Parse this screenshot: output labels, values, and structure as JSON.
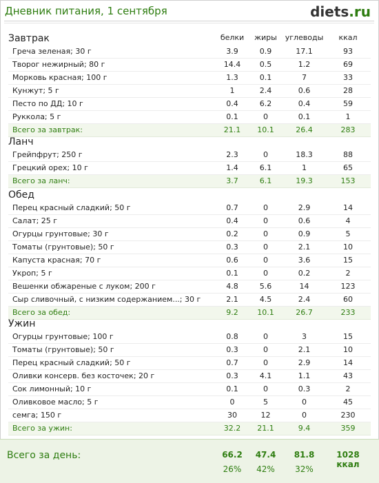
{
  "header": {
    "title": "Дневник питания, 1 сентября",
    "logo_main": "diets",
    "logo_tld": ".ru"
  },
  "columns": [
    "белки",
    "жиры",
    "углеводы",
    "ккал"
  ],
  "meals": [
    {
      "name": "Завтрак",
      "items": [
        {
          "name": "Греча зеленая; 30 г",
          "protein": "3.9",
          "fat": "0.9",
          "carbs": "17.1",
          "kcal": "93"
        },
        {
          "name": "Творог нежирный; 80 г",
          "protein": "14.4",
          "fat": "0.5",
          "carbs": "1.2",
          "kcal": "69"
        },
        {
          "name": "Морковь красная; 100 г",
          "protein": "1.3",
          "fat": "0.1",
          "carbs": "7",
          "kcal": "33"
        },
        {
          "name": "Кунжут; 5 г",
          "protein": "1",
          "fat": "2.4",
          "carbs": "0.6",
          "kcal": "28"
        },
        {
          "name": "Песто по ДД; 10 г",
          "protein": "0.4",
          "fat": "6.2",
          "carbs": "0.4",
          "kcal": "59"
        },
        {
          "name": "Руккола; 5 г",
          "protein": "0.1",
          "fat": "0",
          "carbs": "0.1",
          "kcal": "1"
        }
      ],
      "total": {
        "label": "Всего за завтрак:",
        "protein": "21.1",
        "fat": "10.1",
        "carbs": "26.4",
        "kcal": "283"
      }
    },
    {
      "name": "Ланч",
      "items": [
        {
          "name": "Грейпфрут; 250 г",
          "protein": "2.3",
          "fat": "0",
          "carbs": "18.3",
          "kcal": "88"
        },
        {
          "name": "Грецкий орех; 10 г",
          "protein": "1.4",
          "fat": "6.1",
          "carbs": "1",
          "kcal": "65"
        }
      ],
      "total": {
        "label": "Всего за ланч:",
        "protein": "3.7",
        "fat": "6.1",
        "carbs": "19.3",
        "kcal": "153"
      }
    },
    {
      "name": "Обед",
      "items": [
        {
          "name": "Перец красный сладкий; 50 г",
          "protein": "0.7",
          "fat": "0",
          "carbs": "2.9",
          "kcal": "14"
        },
        {
          "name": "Салат; 25 г",
          "protein": "0.4",
          "fat": "0",
          "carbs": "0.6",
          "kcal": "4"
        },
        {
          "name": "Огурцы грунтовые; 30 г",
          "protein": "0.2",
          "fat": "0",
          "carbs": "0.9",
          "kcal": "5"
        },
        {
          "name": "Томаты (грунтовые); 50 г",
          "protein": "0.3",
          "fat": "0",
          "carbs": "2.1",
          "kcal": "10"
        },
        {
          "name": "Капуста красная; 70 г",
          "protein": "0.6",
          "fat": "0",
          "carbs": "3.6",
          "kcal": "15"
        },
        {
          "name": "Укроп; 5 г",
          "protein": "0.1",
          "fat": "0",
          "carbs": "0.2",
          "kcal": "2"
        },
        {
          "name": "Вешенки обжареные с луком; 200 г",
          "protein": "4.8",
          "fat": "5.6",
          "carbs": "14",
          "kcal": "123"
        },
        {
          "name": "Сыр сливочный, с низким содержанием...; 30 г",
          "protein": "2.1",
          "fat": "4.5",
          "carbs": "2.4",
          "kcal": "60"
        }
      ],
      "total": {
        "label": "Всего за обед:",
        "protein": "9.2",
        "fat": "10.1",
        "carbs": "26.7",
        "kcal": "233"
      }
    },
    {
      "name": "Ужин",
      "items": [
        {
          "name": "Огурцы грунтовые; 100 г",
          "protein": "0.8",
          "fat": "0",
          "carbs": "3",
          "kcal": "15"
        },
        {
          "name": "Томаты (грунтовые); 50 г",
          "protein": "0.3",
          "fat": "0",
          "carbs": "2.1",
          "kcal": "10"
        },
        {
          "name": "Перец красный сладкий; 50 г",
          "protein": "0.7",
          "fat": "0",
          "carbs": "2.9",
          "kcal": "14"
        },
        {
          "name": "Оливки консерв. без косточек; 20 г",
          "protein": "0.3",
          "fat": "4.1",
          "carbs": "1.1",
          "kcal": "43"
        },
        {
          "name": "Сок лимонный; 10 г",
          "protein": "0.1",
          "fat": "0",
          "carbs": "0.3",
          "kcal": "2"
        },
        {
          "name": "Оливковое масло; 5 г",
          "protein": "0",
          "fat": "5",
          "carbs": "0",
          "kcal": "45"
        },
        {
          "name": "семга; 150 г",
          "protein": "30",
          "fat": "12",
          "carbs": "0",
          "kcal": "230"
        }
      ],
      "total": {
        "label": "Всего за ужин:",
        "protein": "32.2",
        "fat": "21.1",
        "carbs": "9.4",
        "kcal": "359"
      }
    }
  ],
  "day_total": {
    "label": "Всего за день:",
    "protein": "66.2",
    "fat": "47.4",
    "carbs": "81.8",
    "kcal": "1028 ккал",
    "protein_pct": "26%",
    "fat_pct": "42%",
    "carbs_pct": "32%"
  },
  "colors": {
    "accent_green": "#2e7d10",
    "total_bg": "#f2f7ec",
    "day_bg": "#edf3e6"
  }
}
